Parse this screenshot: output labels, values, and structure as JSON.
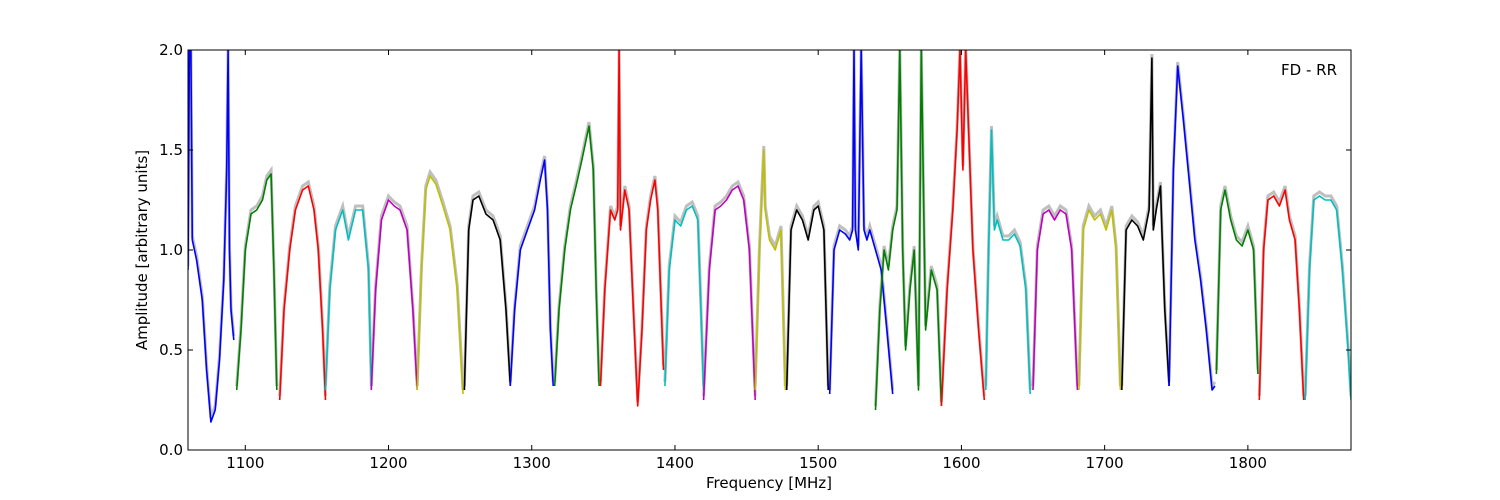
{
  "chart_data": {
    "type": "line",
    "title": "",
    "annotation": "FD - RR",
    "xlabel": "Frequency [MHz]",
    "ylabel": "Amplitude [arbitrary units]",
    "xlim": [
      1060,
      1872
    ],
    "ylim": [
      0.0,
      2.0
    ],
    "xticks": [
      1100,
      1200,
      1300,
      1400,
      1500,
      1600,
      1700,
      1800
    ],
    "yticks": [
      0.0,
      0.5,
      1.0,
      1.5,
      2.0
    ],
    "ytick_labels": [
      "0.0",
      "0.5",
      "1.0",
      "1.5",
      "2.0"
    ],
    "grid": false,
    "legend": "none",
    "reference_color": "#bfbfbf",
    "series": [
      {
        "color": "#0000ff",
        "x": [
          1060,
          1061,
          1062,
          1063,
          1066,
          1070,
          1073,
          1076,
          1079,
          1082,
          1085,
          1087,
          1088,
          1089,
          1090,
          1092
        ],
        "y": [
          0.9,
          2.0,
          2.0,
          1.05,
          0.95,
          0.75,
          0.4,
          0.14,
          0.2,
          0.45,
          0.85,
          1.4,
          2.0,
          1.0,
          0.7,
          0.55
        ]
      },
      {
        "color": "#008000",
        "x": [
          1094,
          1097,
          1100,
          1104,
          1108,
          1112,
          1115,
          1118,
          1120,
          1122
        ],
        "y": [
          0.3,
          0.6,
          1.0,
          1.18,
          1.2,
          1.25,
          1.35,
          1.38,
          0.9,
          0.3
        ]
      },
      {
        "color": "#ff0000",
        "x": [
          1124,
          1127,
          1131,
          1135,
          1140,
          1144,
          1148,
          1151,
          1154,
          1156
        ],
        "y": [
          0.25,
          0.7,
          1.0,
          1.2,
          1.3,
          1.32,
          1.2,
          1.0,
          0.6,
          0.25
        ]
      },
      {
        "color": "#00bfbf",
        "x": [
          1156,
          1159,
          1163,
          1168,
          1172,
          1177,
          1182,
          1186,
          1188
        ],
        "y": [
          0.3,
          0.8,
          1.1,
          1.2,
          1.05,
          1.2,
          1.2,
          0.9,
          0.3
        ]
      },
      {
        "color": "#bf00bf",
        "x": [
          1188,
          1191,
          1195,
          1200,
          1204,
          1208,
          1213,
          1217,
          1220
        ],
        "y": [
          0.3,
          0.8,
          1.15,
          1.25,
          1.22,
          1.2,
          1.1,
          0.7,
          0.3
        ]
      },
      {
        "color": "#bfbf00",
        "x": [
          1220,
          1223,
          1226,
          1229,
          1233,
          1238,
          1243,
          1248,
          1252
        ],
        "y": [
          0.3,
          0.9,
          1.3,
          1.37,
          1.33,
          1.22,
          1.1,
          0.8,
          0.28
        ]
      },
      {
        "color": "#000000",
        "x": [
          1253,
          1256,
          1259,
          1263,
          1268,
          1273,
          1278,
          1282,
          1285
        ],
        "y": [
          0.3,
          1.1,
          1.25,
          1.27,
          1.18,
          1.15,
          1.05,
          0.7,
          0.32
        ]
      },
      {
        "color": "#0000ff",
        "x": [
          1285,
          1288,
          1292,
          1297,
          1302,
          1306,
          1309,
          1311,
          1313,
          1315
        ],
        "y": [
          0.32,
          0.7,
          1.0,
          1.1,
          1.2,
          1.35,
          1.45,
          1.2,
          0.6,
          0.32
        ]
      },
      {
        "color": "#008000",
        "x": [
          1316,
          1319,
          1323,
          1327,
          1331,
          1335,
          1340,
          1343,
          1345,
          1347
        ],
        "y": [
          0.32,
          0.7,
          1.0,
          1.2,
          1.32,
          1.45,
          1.62,
          1.4,
          0.8,
          0.32
        ]
      },
      {
        "color": "#ff0000",
        "x": [
          1348,
          1351,
          1355,
          1358,
          1360,
          1361,
          1362,
          1365,
          1368,
          1371,
          1374,
          1377,
          1380,
          1383,
          1386,
          1388,
          1390,
          1392
        ],
        "y": [
          0.32,
          0.8,
          1.2,
          1.15,
          1.2,
          2.0,
          1.1,
          1.3,
          1.2,
          0.7,
          0.22,
          0.6,
          1.1,
          1.25,
          1.35,
          1.2,
          0.8,
          0.4
        ]
      },
      {
        "color": "#00bfbf",
        "x": [
          1393,
          1396,
          1400,
          1404,
          1408,
          1412,
          1416,
          1420
        ],
        "y": [
          0.32,
          0.9,
          1.15,
          1.12,
          1.2,
          1.22,
          1.15,
          0.3
        ]
      },
      {
        "color": "#bf00bf",
        "x": [
          1420,
          1424,
          1428,
          1432,
          1436,
          1440,
          1444,
          1448,
          1452,
          1456
        ],
        "y": [
          0.25,
          0.9,
          1.2,
          1.22,
          1.25,
          1.3,
          1.32,
          1.25,
          1.0,
          0.25
        ]
      },
      {
        "color": "#bfbf00",
        "x": [
          1456,
          1459,
          1462,
          1463,
          1466,
          1470,
          1474,
          1477
        ],
        "y": [
          0.3,
          1.0,
          1.5,
          1.2,
          1.05,
          1.0,
          1.1,
          0.3
        ]
      },
      {
        "color": "#000000",
        "x": [
          1478,
          1481,
          1485,
          1489,
          1493,
          1497,
          1500,
          1504,
          1507
        ],
        "y": [
          0.3,
          1.1,
          1.2,
          1.15,
          1.05,
          1.2,
          1.22,
          1.1,
          0.3
        ]
      },
      {
        "color": "#0000ff",
        "x": [
          1508,
          1511,
          1515,
          1519,
          1522,
          1524,
          1525,
          1526,
          1528,
          1530,
          1532,
          1534,
          1536,
          1540,
          1544,
          1548,
          1552
        ],
        "y": [
          0.28,
          1.0,
          1.1,
          1.08,
          1.05,
          1.1,
          2.0,
          1.1,
          1.0,
          2.0,
          1.1,
          1.05,
          1.1,
          1.0,
          0.9,
          0.6,
          0.28
        ]
      },
      {
        "color": "#008000",
        "x": [
          1540,
          1543,
          1546,
          1549,
          1552,
          1555,
          1557,
          1559,
          1561,
          1564,
          1567,
          1570,
          1572,
          1575,
          1579,
          1583,
          1586
        ],
        "y": [
          0.2,
          0.7,
          1.0,
          0.9,
          1.1,
          1.2,
          2.0,
          1.0,
          0.5,
          0.8,
          1.0,
          0.3,
          2.0,
          0.6,
          0.9,
          0.8,
          0.22
        ]
      },
      {
        "color": "#ff0000",
        "x": [
          1586,
          1590,
          1594,
          1597,
          1599,
          1601,
          1603,
          1605,
          1608,
          1612,
          1616
        ],
        "y": [
          0.22,
          0.8,
          1.2,
          1.6,
          2.0,
          1.4,
          2.0,
          1.6,
          1.0,
          0.6,
          0.25
        ]
      },
      {
        "color": "#00bfbf",
        "x": [
          1617,
          1619,
          1621,
          1623,
          1625,
          1629,
          1633,
          1637,
          1641,
          1645,
          1648
        ],
        "y": [
          0.3,
          1.0,
          1.6,
          1.1,
          1.15,
          1.05,
          1.05,
          1.08,
          1.02,
          0.8,
          0.28
        ]
      },
      {
        "color": "#bf00bf",
        "x": [
          1650,
          1653,
          1657,
          1661,
          1665,
          1669,
          1673,
          1677,
          1681
        ],
        "y": [
          0.3,
          1.0,
          1.18,
          1.2,
          1.15,
          1.2,
          1.18,
          1.0,
          0.3
        ]
      },
      {
        "color": "#bfbf00",
        "x": [
          1682,
          1685,
          1689,
          1693,
          1697,
          1701,
          1705,
          1708,
          1711
        ],
        "y": [
          0.3,
          1.1,
          1.2,
          1.15,
          1.18,
          1.1,
          1.2,
          1.0,
          0.3
        ]
      },
      {
        "color": "#000000",
        "x": [
          1712,
          1715,
          1719,
          1723,
          1727,
          1731,
          1733,
          1734,
          1736,
          1739,
          1740,
          1742,
          1745
        ],
        "y": [
          0.3,
          1.1,
          1.15,
          1.12,
          1.05,
          1.2,
          1.96,
          1.1,
          1.2,
          1.32,
          1.1,
          0.7,
          0.32
        ]
      },
      {
        "color": "#0000ff",
        "x": [
          1745,
          1748,
          1751,
          1755,
          1759,
          1763,
          1767,
          1771,
          1775,
          1777
        ],
        "y": [
          0.32,
          1.4,
          1.92,
          1.65,
          1.35,
          1.05,
          0.85,
          0.6,
          0.3,
          0.32
        ]
      },
      {
        "color": "#008000",
        "x": [
          1778,
          1781,
          1784,
          1788,
          1792,
          1796,
          1800,
          1804,
          1807
        ],
        "y": [
          0.38,
          1.2,
          1.3,
          1.15,
          1.05,
          1.02,
          1.1,
          1.0,
          0.38
        ]
      },
      {
        "color": "#ff0000",
        "x": [
          1808,
          1811,
          1814,
          1818,
          1822,
          1826,
          1829,
          1833,
          1836,
          1839
        ],
        "y": [
          0.25,
          1.0,
          1.25,
          1.27,
          1.22,
          1.3,
          1.15,
          1.05,
          0.7,
          0.25
        ]
      },
      {
        "color": "#00bfbf",
        "x": [
          1840,
          1843,
          1846,
          1850,
          1854,
          1858,
          1862,
          1866,
          1870,
          1872
        ],
        "y": [
          0.25,
          0.9,
          1.25,
          1.27,
          1.25,
          1.25,
          1.2,
          0.9,
          0.5,
          0.25
        ]
      }
    ]
  }
}
